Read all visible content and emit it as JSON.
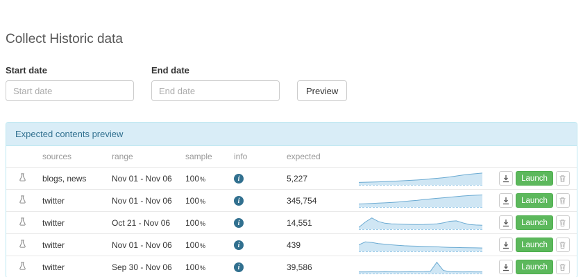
{
  "page": {
    "title": "Collect Historic data"
  },
  "form": {
    "start_label": "Start date",
    "start_placeholder": "Start date",
    "end_label": "End date",
    "end_placeholder": "End date",
    "preview_button": "Preview"
  },
  "panel": {
    "header": "Expected contents preview",
    "columns": {
      "sources": "sources",
      "range": "range",
      "sample": "sample",
      "info": "info",
      "expected": "expected"
    },
    "launch_label": "Launch",
    "rows": [
      {
        "sources": "blogs, news",
        "range": "Nov 01 - Nov 06",
        "sample": "100",
        "sample_unit": "%",
        "expected": "5,227"
      },
      {
        "sources": "twitter",
        "range": "Nov 01 - Nov 06",
        "sample": "100",
        "sample_unit": "%",
        "expected": "345,754"
      },
      {
        "sources": "twitter",
        "range": "Oct 21 - Nov 06",
        "sample": "100",
        "sample_unit": "%",
        "expected": "14,551"
      },
      {
        "sources": "twitter",
        "range": "Nov 01 - Nov 06",
        "sample": "100",
        "sample_unit": "%",
        "expected": "439"
      },
      {
        "sources": "twitter",
        "range": "Sep 30 - Nov 06",
        "sample": "100",
        "sample_unit": "%",
        "expected": "39,586"
      }
    ]
  },
  "icons": {
    "info_glyph": "i"
  },
  "colors": {
    "panel_border": "#bce8f1",
    "panel_header_bg": "#d9edf7",
    "panel_header_text": "#31708f",
    "launch_green": "#5cb85c",
    "spark_fill": "#cfe6f4",
    "spark_stroke": "#6aaad2"
  },
  "chart_data": {
    "type": "area",
    "title": "row sparklines (relative volume over date range)",
    "series": [
      {
        "name": "blogs, news 5,227",
        "values": [
          0.15,
          0.17,
          0.18,
          0.2,
          0.22,
          0.25,
          0.27,
          0.3,
          0.33,
          0.36,
          0.4,
          0.45,
          0.5,
          0.55,
          0.62,
          0.7,
          0.78,
          0.85,
          0.9,
          0.95
        ]
      },
      {
        "name": "twitter 345,754",
        "values": [
          0.2,
          0.22,
          0.25,
          0.28,
          0.3,
          0.33,
          0.37,
          0.42,
          0.47,
          0.52,
          0.58,
          0.63,
          0.68,
          0.73,
          0.78,
          0.83,
          0.88,
          0.92,
          0.95,
          0.97
        ]
      },
      {
        "name": "twitter 14,551",
        "values": [
          0.1,
          0.55,
          0.9,
          0.6,
          0.45,
          0.4,
          0.38,
          0.36,
          0.35,
          0.34,
          0.35,
          0.37,
          0.4,
          0.48,
          0.62,
          0.65,
          0.48,
          0.34,
          0.3,
          0.28
        ]
      },
      {
        "name": "twitter 439",
        "values": [
          0.5,
          0.75,
          0.7,
          0.6,
          0.55,
          0.5,
          0.45,
          0.42,
          0.4,
          0.38,
          0.36,
          0.35,
          0.33,
          0.3,
          0.28,
          0.27,
          0.26,
          0.25,
          0.24,
          0.23
        ]
      },
      {
        "name": "twitter 39,586",
        "values": [
          0.08,
          0.08,
          0.09,
          0.08,
          0.1,
          0.09,
          0.08,
          0.09,
          0.1,
          0.09,
          0.1,
          0.13,
          0.9,
          0.2,
          0.1,
          0.09,
          0.08,
          0.09,
          0.08,
          0.08
        ]
      }
    ]
  }
}
